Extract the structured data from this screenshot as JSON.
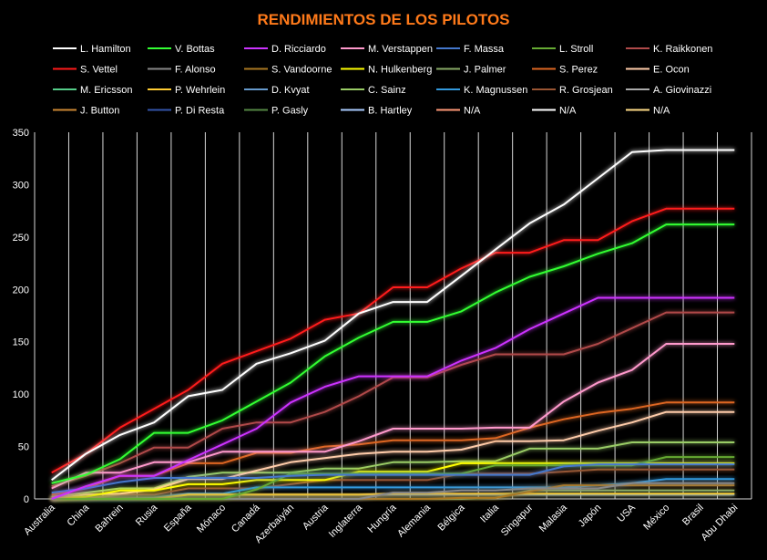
{
  "chart_data": {
    "type": "line",
    "title": "RENDIMIENTOS DE LOS PILOTOS",
    "xlabel": "",
    "ylabel": "",
    "ylim": [
      0,
      350
    ],
    "yticks": [
      0,
      50,
      100,
      150,
      200,
      250,
      300,
      350
    ],
    "grid": "vertical gridlines at each category",
    "legend": "top",
    "categories": [
      "Australia",
      "China",
      "Bahrein",
      "Rusia",
      "España",
      "Mónaco",
      "Canadá",
      "Azerbaiyán",
      "Austria",
      "Inglaterra",
      "Hungría",
      "Alemania",
      "Bélgica",
      "Italia",
      "Singapur",
      "Malasia",
      "Japón",
      "USA",
      "México",
      "Brasil",
      "Abu Dhabi"
    ],
    "series": [
      {
        "name": "L. Hamilton",
        "color": "#ffffff",
        "values": [
          18,
          43,
          61,
          73,
          98,
          104,
          129,
          139,
          151,
          177,
          188,
          188,
          213,
          238,
          263,
          281,
          306,
          331,
          333,
          333,
          333
        ]
      },
      {
        "name": "V. Bottas",
        "color": "#33ff33",
        "values": [
          15,
          23,
          38,
          63,
          63,
          75,
          93,
          111,
          136,
          154,
          169,
          169,
          179,
          197,
          212,
          222,
          234,
          244,
          262,
          262,
          262
        ]
      },
      {
        "name": "D. Ricciardo",
        "color": "#cc33ff",
        "values": [
          0,
          12,
          22,
          22,
          37,
          52,
          67,
          92,
          107,
          117,
          117,
          117,
          132,
          144,
          162,
          177,
          192,
          192,
          192,
          192,
          192
        ]
      },
      {
        "name": "M. Verstappen",
        "color": "#ff99cc",
        "values": [
          10,
          25,
          25,
          35,
          35,
          45,
          45,
          45,
          45,
          55,
          67,
          67,
          67,
          68,
          68,
          93,
          111,
          123,
          148,
          148,
          148
        ]
      },
      {
        "name": "F. Massa",
        "color": "#4477cc",
        "values": [
          6,
          10,
          16,
          20,
          20,
          20,
          20,
          22,
          23,
          23,
          23,
          23,
          23,
          23,
          23,
          31,
          33,
          33,
          33,
          33,
          33
        ]
      },
      {
        "name": "L. Stroll",
        "color": "#66aa33",
        "values": [
          0,
          0,
          0,
          0,
          0,
          0,
          9,
          24,
          24,
          24,
          24,
          24,
          24,
          32,
          32,
          32,
          32,
          32,
          40,
          40,
          40
        ]
      },
      {
        "name": "K. Raikkonen",
        "color": "#b04a4a",
        "values": [
          12,
          22,
          34,
          49,
          49,
          67,
          73,
          73,
          83,
          98,
          116,
          116,
          128,
          138,
          138,
          138,
          148,
          163,
          178,
          178,
          178
        ]
      },
      {
        "name": "S. Vettel",
        "color": "#ff1a1a",
        "values": [
          25,
          43,
          68,
          86,
          104,
          129,
          141,
          153,
          171,
          177,
          202,
          202,
          220,
          235,
          235,
          247,
          247,
          265,
          277,
          277,
          277
        ]
      },
      {
        "name": "F. Alonso",
        "color": "#888888",
        "values": [
          0,
          0,
          0,
          0,
          0,
          0,
          0,
          0,
          0,
          0,
          6,
          6,
          8,
          8,
          10,
          10,
          10,
          15,
          15,
          15,
          15
        ]
      },
      {
        "name": "S. Vandoorne",
        "color": "#aa7722",
        "values": [
          0,
          0,
          0,
          0,
          0,
          0,
          0,
          0,
          0,
          0,
          0,
          0,
          1,
          1,
          7,
          13,
          13,
          13,
          13,
          13,
          13
        ]
      },
      {
        "name": "N. Hulkenberg",
        "color": "#ffff00",
        "values": [
          0,
          2,
          8,
          8,
          14,
          14,
          18,
          18,
          18,
          26,
          26,
          26,
          34,
          34,
          34,
          34,
          34,
          34,
          34,
          34,
          34
        ]
      },
      {
        "name": "J. Palmer",
        "color": "#88aa66",
        "values": [
          0,
          0,
          0,
          0,
          0,
          0,
          0,
          0,
          0,
          0,
          0,
          0,
          0,
          1,
          8,
          8,
          8,
          8,
          8,
          8,
          8
        ]
      },
      {
        "name": "S. Perez",
        "color": "#dd6622",
        "values": [
          4,
          10,
          22,
          22,
          34,
          34,
          44,
          44,
          50,
          52,
          56,
          56,
          56,
          58,
          68,
          76,
          82,
          86,
          92,
          92,
          92
        ]
      },
      {
        "name": "E. Ocon",
        "color": "#ffccaa",
        "values": [
          0,
          4,
          5,
          9,
          19,
          19,
          27,
          35,
          39,
          43,
          45,
          45,
          47,
          55,
          55,
          56,
          65,
          73,
          83,
          83,
          83
        ]
      },
      {
        "name": "M. Ericsson",
        "color": "#55cc88",
        "values": [
          0,
          0,
          0,
          0,
          0,
          0,
          0,
          0,
          0,
          0,
          0,
          0,
          0,
          0,
          0,
          0,
          0,
          0,
          0,
          0,
          0
        ]
      },
      {
        "name": "P. Wehrlein",
        "color": "#ffcc33",
        "values": [
          0,
          0,
          0,
          0,
          4,
          4,
          4,
          4,
          4,
          4,
          5,
          5,
          5,
          5,
          5,
          5,
          5,
          5,
          5,
          5,
          5
        ]
      },
      {
        "name": "D. Kvyat",
        "color": "#6699cc",
        "values": [
          0,
          0,
          0,
          0,
          4,
          4,
          4,
          4,
          4,
          4,
          4,
          4,
          4,
          4,
          4,
          4,
          4,
          4,
          4,
          4,
          4
        ]
      },
      {
        "name": "C. Sainz",
        "color": "#99cc66",
        "values": [
          2,
          6,
          10,
          10,
          21,
          25,
          25,
          25,
          29,
          29,
          35,
          35,
          36,
          36,
          48,
          48,
          48,
          54,
          54,
          54,
          54
        ]
      },
      {
        "name": "K. Magnussen",
        "color": "#3399dd",
        "values": [
          0,
          0,
          0,
          1,
          5,
          5,
          11,
          11,
          11,
          11,
          11,
          11,
          11,
          11,
          11,
          11,
          13,
          15,
          19,
          19,
          19
        ]
      },
      {
        "name": "R. Grosjean",
        "color": "#995533",
        "values": [
          0,
          0,
          4,
          4,
          10,
          10,
          10,
          14,
          18,
          18,
          18,
          18,
          24,
          24,
          24,
          26,
          28,
          28,
          28,
          28,
          28
        ]
      },
      {
        "name": "A. Giovinazzi",
        "color": "#aaaaaa",
        "values": [
          0,
          0,
          0,
          0,
          0,
          0,
          0,
          0,
          0,
          0,
          0,
          0,
          0,
          0,
          0,
          0,
          0,
          0,
          0,
          0,
          0
        ]
      },
      {
        "name": "J. Button",
        "color": "#cc8833",
        "values": [
          0,
          0,
          0,
          0,
          0,
          0,
          0,
          0,
          0,
          0,
          0,
          0,
          0,
          0,
          0,
          0,
          0,
          0,
          0,
          0,
          0
        ]
      },
      {
        "name": "P. Di Resta",
        "color": "#3355aa",
        "values": [
          0,
          0,
          0,
          0,
          0,
          0,
          0,
          0,
          0,
          0,
          0,
          0,
          0,
          0,
          0,
          0,
          0,
          0,
          0,
          0,
          0
        ]
      },
      {
        "name": "P. Gasly",
        "color": "#558844",
        "values": [
          0,
          0,
          0,
          0,
          0,
          0,
          0,
          0,
          0,
          0,
          0,
          0,
          0,
          0,
          0,
          0,
          0,
          0,
          0,
          0,
          0
        ]
      },
      {
        "name": "B. Hartley",
        "color": "#aaccff",
        "values": [
          0,
          0,
          0,
          0,
          0,
          0,
          0,
          0,
          0,
          0,
          0,
          0,
          0,
          0,
          0,
          0,
          0,
          0,
          0,
          0,
          0
        ]
      },
      {
        "name": "N/A",
        "color": "#ff9977",
        "values": [
          0,
          0,
          0,
          0,
          0,
          0,
          0,
          0,
          0,
          0,
          0,
          0,
          0,
          0,
          0,
          0,
          0,
          0,
          0,
          0,
          0
        ]
      },
      {
        "name": "N/A",
        "color": "#ffffff",
        "values": [
          0,
          0,
          0,
          0,
          0,
          0,
          0,
          0,
          0,
          0,
          0,
          0,
          0,
          0,
          0,
          0,
          0,
          0,
          0,
          0,
          0
        ]
      },
      {
        "name": "N/A",
        "color": "#ffdd88",
        "values": [
          0,
          0,
          0,
          0,
          0,
          0,
          0,
          0,
          0,
          0,
          0,
          0,
          0,
          0,
          0,
          0,
          0,
          0,
          0,
          0,
          0
        ]
      }
    ]
  }
}
